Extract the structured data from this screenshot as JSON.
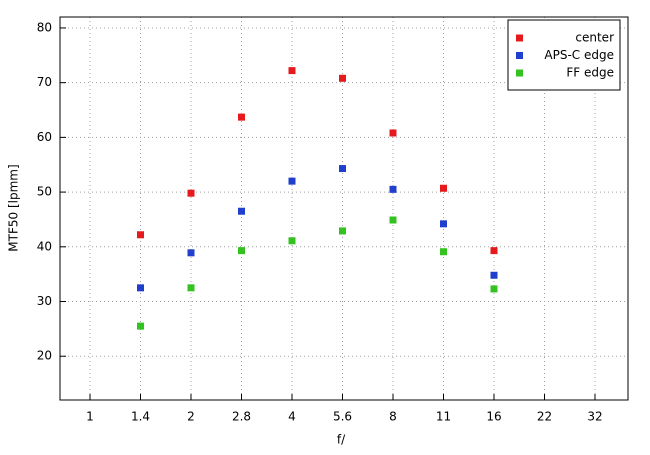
{
  "chart_data": {
    "type": "scatter",
    "x_label": "f/",
    "y_label": "MTF50 [lpmm]",
    "categories": [
      "1",
      "1.4",
      "2",
      "2.8",
      "4",
      "5.6",
      "8",
      "11",
      "16",
      "22",
      "32"
    ],
    "series": [
      {
        "name": "center",
        "color": "#e41a1c",
        "values": [
          null,
          42.2,
          49.8,
          63.7,
          72.2,
          70.8,
          60.8,
          50.7,
          39.3,
          null,
          null
        ]
      },
      {
        "name": "APS-C edge",
        "color": "#1f3fcc",
        "values": [
          null,
          32.5,
          38.9,
          46.5,
          52.0,
          54.3,
          50.5,
          44.2,
          34.8,
          null,
          null
        ]
      },
      {
        "name": "FF edge",
        "color": "#33c21f",
        "values": [
          null,
          25.5,
          32.5,
          39.3,
          41.1,
          42.9,
          44.9,
          39.1,
          32.3,
          null,
          null
        ]
      }
    ],
    "ylim": [
      12,
      82
    ],
    "yticks": [
      20,
      30,
      40,
      50,
      60,
      70,
      80
    ],
    "grid": true,
    "legend": "top-right"
  }
}
